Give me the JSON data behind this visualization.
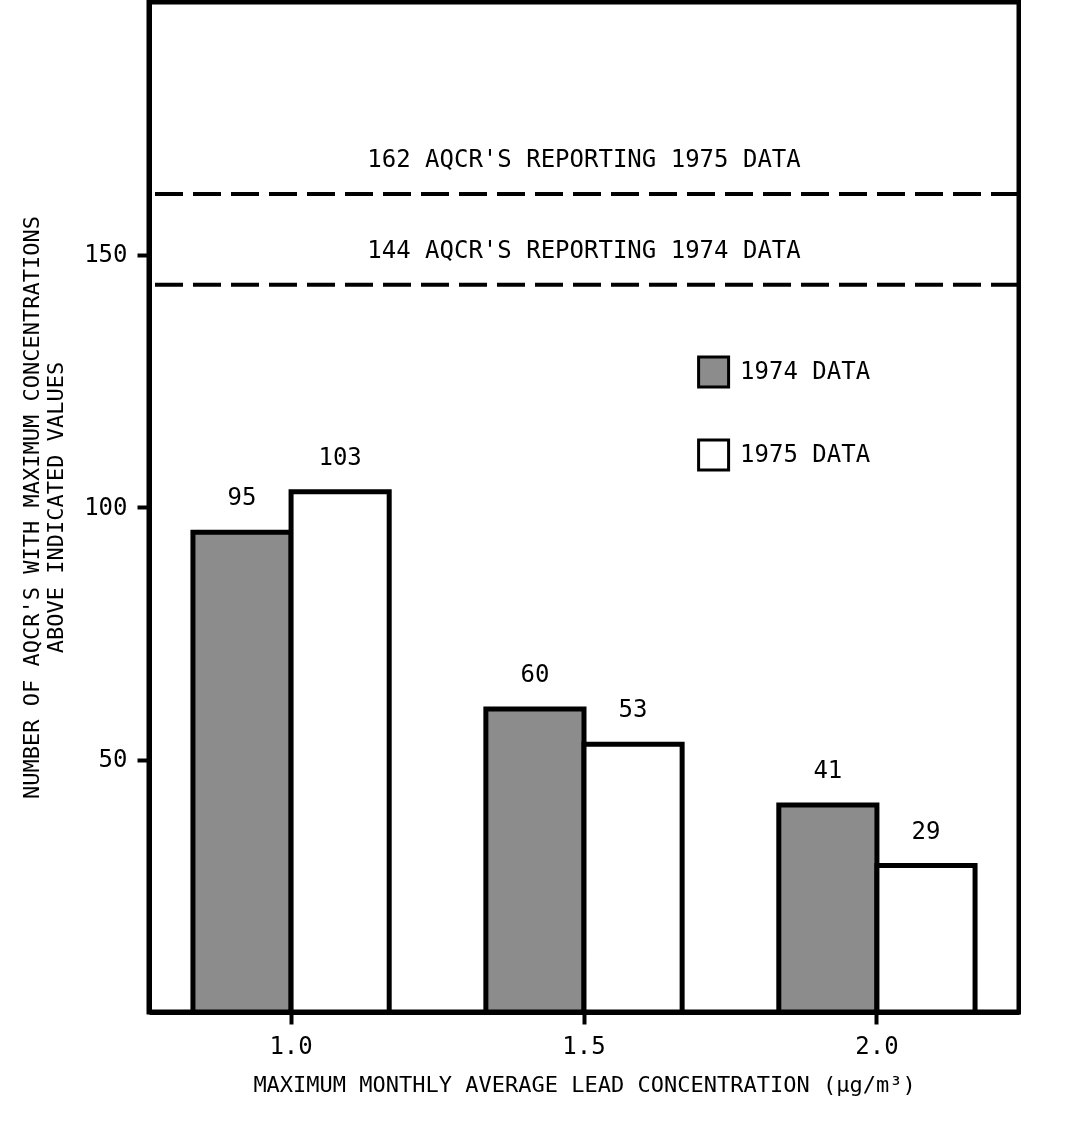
{
  "chart_data": {
    "type": "bar",
    "xlabel": "MAXIMUM MONTHLY AVERAGE LEAD CONCENTRATION (μg/m³)",
    "ylabel": "NUMBER OF AQCR'S WITH MAXIMUM CONCENTRATIONS\nABOVE INDICATED VALUES",
    "categories": [
      "1.0",
      "1.5",
      "2.0"
    ],
    "series": [
      {
        "name": "1974 DATA",
        "color": "#8c8c8c",
        "values": [
          95,
          60,
          41
        ]
      },
      {
        "name": "1975 DATA",
        "color": "#ffffff",
        "values": [
          103,
          53,
          29
        ]
      }
    ],
    "ylim": [
      0,
      200
    ],
    "yticks": [
      50,
      100,
      150
    ],
    "grid": false,
    "legend": "right",
    "data_labels": true,
    "ref_lines": [
      {
        "axis": "y",
        "value": 162,
        "label": "162 AQCR'S REPORTING 1975 DATA",
        "line_style": "dashed"
      },
      {
        "axis": "y",
        "value": 144,
        "label": "144 AQCR'S REPORTING 1974 DATA",
        "line_style": "dashed"
      }
    ]
  }
}
